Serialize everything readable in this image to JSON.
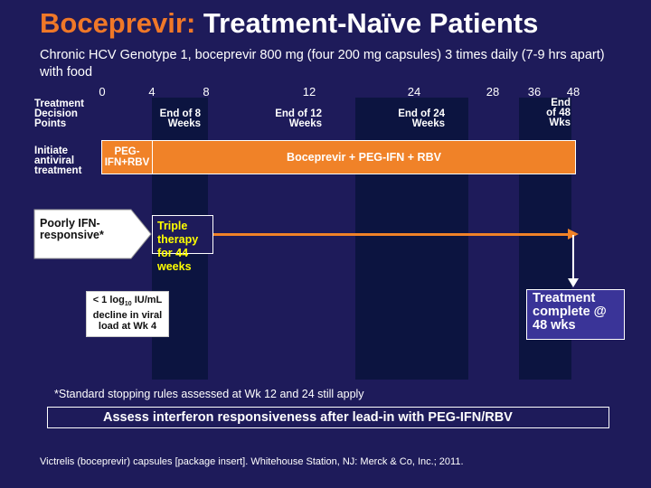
{
  "title": {
    "accent": "Boceprevir:",
    "rest": " Treatment-Naïve Patients"
  },
  "subtitle": "Chronic HCV Genotype 1, boceprevir 800 mg (four 200 mg capsules) 3 times daily (7-9 hrs apart) with food",
  "timeline_ticks": [
    "0",
    "4",
    "8",
    "12",
    "24",
    "28",
    "36",
    "48"
  ],
  "row_labels": {
    "decision_points": "Treatment Decision Points",
    "initiate": "Initiate antiviral treatment"
  },
  "decision_points": {
    "week8": "End of 8 Weeks",
    "week12": "End of 12 Weeks",
    "week24": "End of 24 Weeks",
    "week48": "End of 48 Wks"
  },
  "treatment_bars": {
    "lead_in": "PEG-IFN+RBV",
    "main": "Boceprevir + PEG-IFN + RBV"
  },
  "flow": {
    "poorly": "Poorly IFN-responsive*",
    "triple": "Triple therapy for 44 weeks",
    "decline": {
      "prefix": "< 1 log",
      "sub": "10",
      "suffix": " IU/mL decline in viral load at Wk 4"
    },
    "complete": "Treatment complete @ 48 wks"
  },
  "footnote": "*Standard stopping rules assessed at Wk 12 and 24 still apply",
  "banner": "Assess interferon responsiveness after lead-in with PEG-IFN/RBV",
  "reference": "Victrelis (boceprevir) capsules [package insert]. Whitehouse Station, NJ: Merck & Co, Inc.; 2011.",
  "colors": {
    "background": "#1e1b5a",
    "accent": "#f07828",
    "bar": "#f08228",
    "band": "#0c1440",
    "highlight": "#ffff00"
  }
}
